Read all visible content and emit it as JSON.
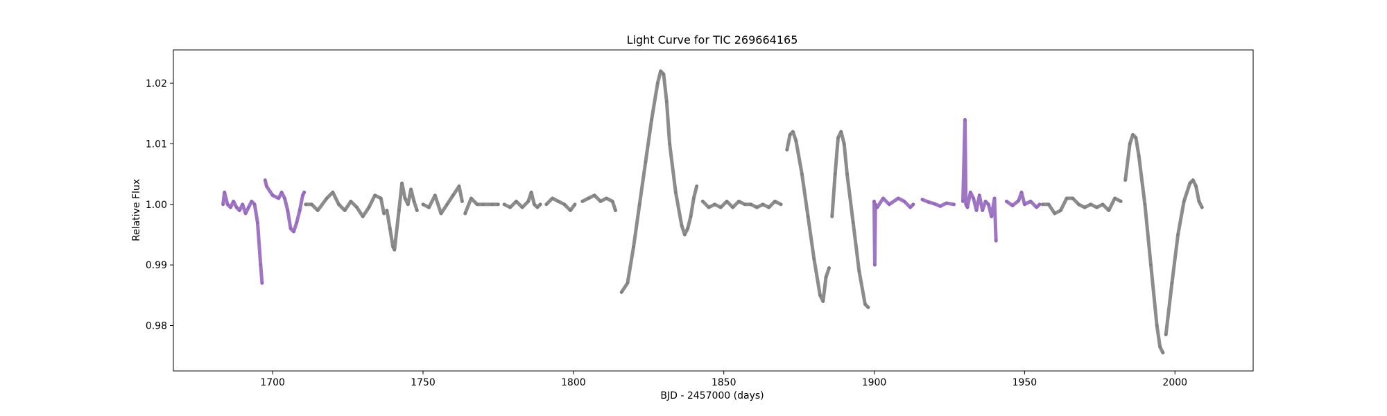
{
  "chart_data": {
    "type": "scatter",
    "title": "Light Curve for TIC 269664165",
    "xlabel": "BJD - 2457000 (days)",
    "ylabel": "Relative Flux",
    "xlim": [
      1667,
      2026
    ],
    "ylim": [
      0.9725,
      1.0255
    ],
    "xticks": [
      1700,
      1750,
      1800,
      1850,
      1900,
      1950,
      2000
    ],
    "yticks": [
      0.98,
      0.99,
      1.0,
      1.01,
      1.02
    ],
    "grid": false,
    "colors": {
      "purple": "#9467bd",
      "gray": "#7f7f7f"
    },
    "series": [
      {
        "color": "purple",
        "segments": [
          [
            [
              1683.5,
              1.0
            ],
            [
              1684,
              1.002
            ],
            [
              1685,
              1.0
            ],
            [
              1686,
              0.9995
            ],
            [
              1687,
              1.0005
            ],
            [
              1688,
              0.9995
            ],
            [
              1689,
              0.999
            ],
            [
              1690,
              1.0
            ],
            [
              1691,
              0.9985
            ],
            [
              1692,
              0.9995
            ],
            [
              1693,
              1.0005
            ],
            [
              1694,
              1.0
            ],
            [
              1695,
              0.997
            ],
            [
              1696,
              0.99
            ],
            [
              1696.5,
              0.987
            ]
          ],
          [
            [
              1697.5,
              1.004
            ],
            [
              1698,
              1.003
            ],
            [
              1700,
              1.0015
            ],
            [
              1702,
              1.001
            ],
            [
              1703,
              1.002
            ],
            [
              1704,
              1.001
            ],
            [
              1705,
              0.999
            ],
            [
              1706,
              0.996
            ],
            [
              1707,
              0.9955
            ],
            [
              1708,
              0.997
            ],
            [
              1709,
              0.999
            ],
            [
              1710,
              1.0015
            ],
            [
              1710.5,
              1.002
            ]
          ],
          [
            [
              1900,
              1.0005
            ],
            [
              1900.2,
              0.99
            ],
            [
              1900.4,
              1.0
            ],
            [
              1901,
              0.9995
            ],
            [
              1903,
              1.001
            ],
            [
              1905,
              1.0
            ],
            [
              1908,
              1.001
            ],
            [
              1910,
              1.0005
            ],
            [
              1912,
              0.9995
            ],
            [
              1913,
              1.0
            ]
          ],
          [
            [
              1916,
              1.0008
            ],
            [
              1918,
              1.0004
            ],
            [
              1920,
              1.0001
            ],
            [
              1922,
              0.9997
            ],
            [
              1924,
              1.0002
            ],
            [
              1926.5,
              1.0
            ]
          ],
          [
            [
              1929.5,
              1.0005
            ],
            [
              1930.2,
              1.014
            ],
            [
              1930.5,
              1.0
            ],
            [
              1931,
              0.9995
            ],
            [
              1932,
              1.002
            ],
            [
              1933,
              1.001
            ],
            [
              1934,
              0.999
            ],
            [
              1935,
              1.0015
            ],
            [
              1936,
              0.999
            ],
            [
              1937,
              1.0005
            ],
            [
              1938,
              1.0
            ],
            [
              1939,
              0.998
            ],
            [
              1940,
              1.001
            ],
            [
              1940.5,
              0.994
            ]
          ],
          [
            [
              1944,
              1.0005
            ],
            [
              1946,
              0.9998
            ],
            [
              1948,
              1.0006
            ],
            [
              1949,
              1.002
            ],
            [
              1950,
              1.0
            ],
            [
              1952,
              1.0005
            ],
            [
              1954,
              0.9995
            ],
            [
              1955,
              1.0
            ]
          ]
        ]
      },
      {
        "color": "gray",
        "segments": [
          [
            [
              1711,
              1.0
            ],
            [
              1713,
              1.0
            ],
            [
              1715,
              0.999
            ],
            [
              1718,
              1.001
            ],
            [
              1720,
              1.002
            ],
            [
              1722,
              1.0
            ],
            [
              1724,
              0.999
            ],
            [
              1726,
              1.0005
            ],
            [
              1728,
              0.9995
            ],
            [
              1730,
              0.998
            ],
            [
              1732,
              0.9995
            ],
            [
              1734,
              1.0015
            ],
            [
              1736,
              1.001
            ],
            [
              1737,
              0.9985
            ]
          ],
          [
            [
              1738,
              0.999
            ],
            [
              1739,
              0.996
            ],
            [
              1740,
              0.993
            ],
            [
              1740.5,
              0.9925
            ],
            [
              1742,
              0.999
            ],
            [
              1743,
              1.0035
            ],
            [
              1744,
              1.001
            ],
            [
              1745,
              1.0
            ],
            [
              1746,
              1.0025
            ],
            [
              1747,
              1.0005
            ],
            [
              1748,
              0.999
            ]
          ],
          [
            [
              1750,
              1.0
            ],
            [
              1752,
              0.9995
            ],
            [
              1754,
              1.0015
            ],
            [
              1756,
              0.9985
            ],
            [
              1758,
              1.0
            ],
            [
              1760,
              1.0015
            ],
            [
              1762,
              1.003
            ],
            [
              1763,
              1.0005
            ]
          ],
          [
            [
              1764,
              0.9985
            ],
            [
              1766,
              1.001
            ],
            [
              1768,
              1.0
            ],
            [
              1770,
              1.0
            ],
            [
              1773,
              1.0
            ],
            [
              1775,
              1.0
            ]
          ],
          [
            [
              1777,
              1.0
            ],
            [
              1779,
              0.9995
            ],
            [
              1781,
              1.0005
            ],
            [
              1783,
              0.9995
            ],
            [
              1785,
              1.0005
            ],
            [
              1786,
              1.002
            ],
            [
              1787,
              1.0
            ],
            [
              1788,
              0.9995
            ],
            [
              1789,
              1.0
            ]
          ],
          [
            [
              1791,
              1.0
            ],
            [
              1793,
              1.001
            ],
            [
              1795,
              1.0005
            ],
            [
              1797,
              1.0
            ],
            [
              1799,
              0.999
            ],
            [
              1800.5,
              1.0
            ]
          ],
          [
            [
              1803,
              1.0005
            ],
            [
              1805,
              1.001
            ],
            [
              1807,
              1.0015
            ],
            [
              1809,
              1.0005
            ],
            [
              1811,
              1.001
            ],
            [
              1813,
              1.0005
            ],
            [
              1814,
              0.999
            ]
          ],
          [
            [
              1816,
              0.9855
            ],
            [
              1818,
              0.987
            ],
            [
              1820,
              0.993
            ],
            [
              1822,
              1.0
            ],
            [
              1824,
              1.007
            ],
            [
              1826,
              1.014
            ],
            [
              1828,
              1.02
            ],
            [
              1829,
              1.022
            ],
            [
              1830,
              1.0215
            ],
            [
              1831,
              1.017
            ],
            [
              1832,
              1.01
            ],
            [
              1834,
              1.002
            ],
            [
              1836,
              0.9965
            ],
            [
              1837,
              0.995
            ],
            [
              1838,
              0.996
            ],
            [
              1839,
              0.998
            ],
            [
              1840,
              1.001
            ],
            [
              1841,
              1.003
            ]
          ],
          [
            [
              1843,
              1.0005
            ],
            [
              1845,
              0.9995
            ],
            [
              1847,
              1.0
            ],
            [
              1849,
              0.9995
            ],
            [
              1851,
              1.0005
            ],
            [
              1853,
              0.9995
            ],
            [
              1855,
              1.0005
            ],
            [
              1857,
              1.0
            ],
            [
              1859,
              1.0
            ],
            [
              1861,
              0.9995
            ],
            [
              1863,
              1.0
            ],
            [
              1865,
              0.9995
            ],
            [
              1867,
              1.0005
            ],
            [
              1869,
              1.0
            ]
          ],
          [
            [
              1871,
              1.009
            ],
            [
              1872,
              1.0115
            ],
            [
              1873,
              1.012
            ],
            [
              1874,
              1.0105
            ],
            [
              1876,
              1.005
            ],
            [
              1878,
              0.998
            ],
            [
              1880,
              0.991
            ],
            [
              1882,
              0.985
            ],
            [
              1883,
              0.984
            ],
            [
              1884,
              0.988
            ],
            [
              1885,
              0.9895
            ]
          ],
          [
            [
              1886,
              0.998
            ],
            [
              1887,
              1.005
            ],
            [
              1888,
              1.011
            ],
            [
              1889,
              1.012
            ],
            [
              1890,
              1.01
            ],
            [
              1891,
              1.005
            ],
            [
              1893,
              0.997
            ],
            [
              1895,
              0.989
            ],
            [
              1897,
              0.9835
            ],
            [
              1898,
              0.983
            ]
          ],
          [
            [
              1956,
              1.0
            ],
            [
              1958,
              1.0
            ],
            [
              1960,
              0.9985
            ],
            [
              1962,
              0.999
            ],
            [
              1964,
              1.001
            ],
            [
              1966,
              1.001
            ],
            [
              1968,
              1.0
            ],
            [
              1970,
              0.9995
            ],
            [
              1972,
              1.0
            ],
            [
              1974,
              0.9995
            ],
            [
              1976,
              1.0
            ],
            [
              1978,
              0.999
            ],
            [
              1980,
              1.001
            ],
            [
              1982,
              1.0005
            ]
          ],
          [
            [
              1983.5,
              1.004
            ],
            [
              1985,
              1.01
            ],
            [
              1986,
              1.0115
            ],
            [
              1987,
              1.011
            ],
            [
              1988,
              1.008
            ],
            [
              1990,
              1.0
            ],
            [
              1992,
              0.99
            ],
            [
              1994,
              0.98
            ],
            [
              1995,
              0.9765
            ],
            [
              1996,
              0.9755
            ]
          ],
          [
            [
              1997,
              0.9785
            ],
            [
              1999,
              0.987
            ],
            [
              2001,
              0.995
            ],
            [
              2003,
              1.0005
            ],
            [
              2005,
              1.0035
            ],
            [
              2006,
              1.004
            ],
            [
              2007,
              1.003
            ],
            [
              2008,
              1.0005
            ],
            [
              2009,
              0.9995
            ]
          ]
        ]
      }
    ]
  }
}
